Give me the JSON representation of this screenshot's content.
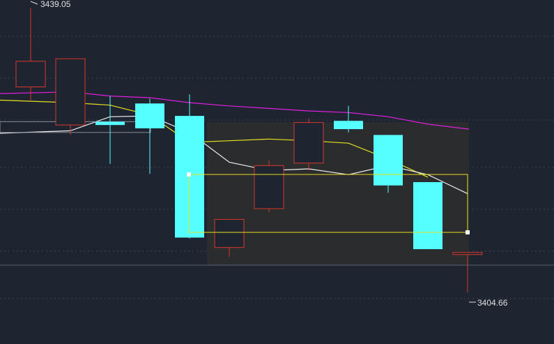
{
  "chart_data": {
    "type": "candlestick",
    "title": "",
    "xlabel": "",
    "ylabel": "",
    "ylim": [
      3403.5,
      3440.0
    ],
    "grid": true,
    "annotations": {
      "high_label": "3439.05",
      "low_label": "3404.66"
    },
    "candles": [
      {
        "open": 3429.5,
        "close": 3432.6,
        "high": 3439.05,
        "low": 3427.9
      },
      {
        "open": 3424.9,
        "close": 3432.9,
        "high": 3432.9,
        "low": 3423.7
      },
      {
        "open": 3425.3,
        "close": 3424.9,
        "high": 3428.4,
        "low": 3420.2
      },
      {
        "open": 3427.5,
        "close": 3424.5,
        "high": 3428.1,
        "low": 3419.0
      },
      {
        "open": 3426.0,
        "close": 3411.3,
        "high": 3428.6,
        "low": 3411.2
      },
      {
        "open": 3410.1,
        "close": 3413.5,
        "high": 3413.5,
        "low": 3409.0
      },
      {
        "open": 3414.8,
        "close": 3420.0,
        "high": 3420.6,
        "low": 3414.4
      },
      {
        "open": 3420.3,
        "close": 3425.2,
        "high": 3425.7,
        "low": 3419.4
      },
      {
        "open": 3425.4,
        "close": 3424.4,
        "high": 3427.2,
        "low": 3424.0
      },
      {
        "open": 3423.7,
        "close": 3417.6,
        "high": 3423.7,
        "low": 3416.7
      },
      {
        "open": 3418.0,
        "close": 3409.9,
        "high": 3418.0,
        "low": 3409.9
      },
      {
        "open": 3409.5,
        "close": 3409.5,
        "high": 3409.5,
        "low": 3404.66
      }
    ],
    "series": [
      {
        "values": [
          3428.7,
          3428.9,
          3428.4,
          3428.2,
          3427.6,
          3427.2,
          3426.9,
          3426.6,
          3426.4,
          3425.9,
          3425.0
        ]
      },
      {
        "values": [
          3427.9,
          3427.6,
          3427.3,
          3426.1,
          3422.8,
          3423.0,
          3423.2,
          3423.0,
          3422.7,
          3420.8,
          3418.6
        ]
      },
      {
        "values": [
          3423.9,
          3424.2,
          3425.9,
          3426.0,
          3424.0,
          3420.4,
          3419.4,
          3419.6,
          3418.9,
          3420.0,
          3418.9,
          3416.6
        ]
      }
    ],
    "colors": {
      "background": "#1e2430",
      "grid": "#3a4150",
      "up": "#d8392b",
      "down": "#55ffff",
      "ma_magenta": "#e020e0",
      "ma_yellow": "#e8e020",
      "ma_white": "#f0f0f0",
      "label": "#e0e0e0",
      "selection_fill": "#2b2c2e",
      "selection_box": "#e8e020"
    }
  }
}
